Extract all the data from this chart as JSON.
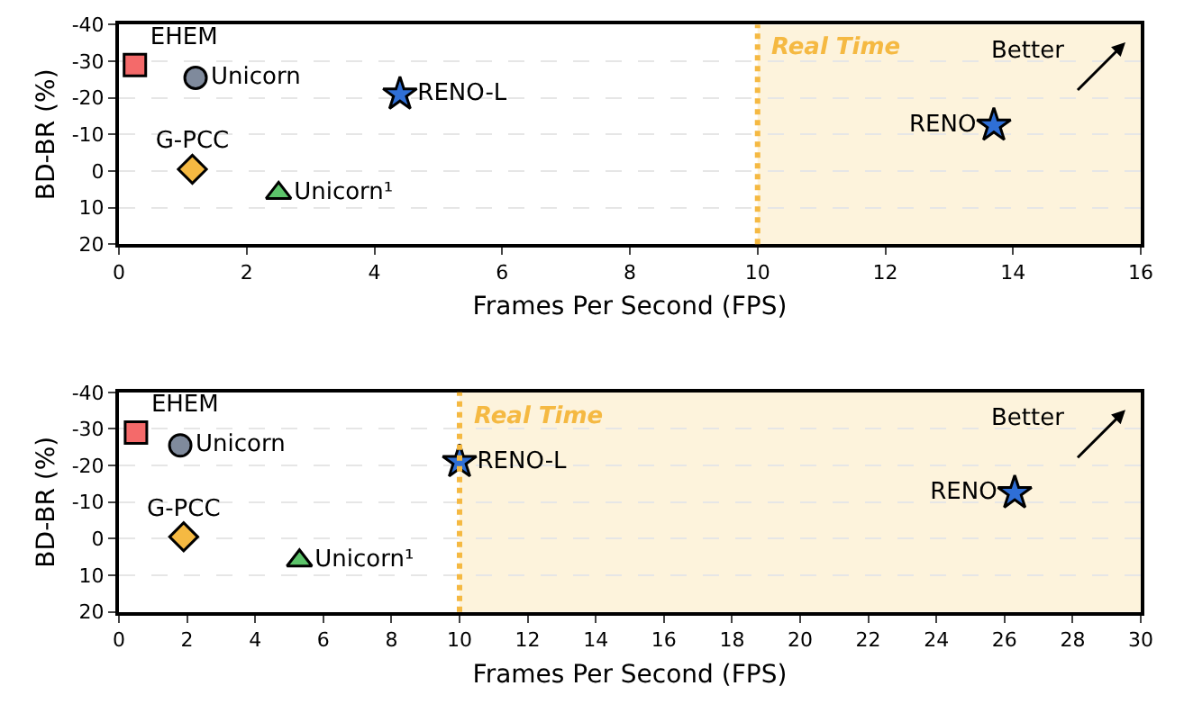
{
  "chart_data": [
    {
      "type": "scatter",
      "xlabel": "Frames Per Second (FPS)",
      "ylabel": "BD-BR (%)",
      "xlim": [
        0,
        16
      ],
      "xticks": [
        0,
        2,
        4,
        6,
        8,
        10,
        12,
        14,
        16
      ],
      "ylim": [
        20,
        -40
      ],
      "yticks": [
        20,
        10,
        0,
        -10,
        -20,
        -30,
        -40
      ],
      "grid": "y",
      "legend": false,
      "series": [
        {
          "name": "EHEM",
          "color": "#f46a6a",
          "marker": "square",
          "x": [
            0.25
          ],
          "values": [
            -29
          ]
        },
        {
          "name": "Unicorn",
          "color": "#7f8a9c",
          "marker": "circle",
          "x": [
            1.2
          ],
          "values": [
            -25.5
          ]
        },
        {
          "name": "RENO-L",
          "color": "#2f6fd6",
          "marker": "star",
          "x": [
            4.4
          ],
          "values": [
            -21
          ]
        },
        {
          "name": "G-PCC",
          "color": "#f5b942",
          "marker": "diamond",
          "x": [
            1.15
          ],
          "values": [
            -0.5
          ]
        },
        {
          "name": "Unicorn¹",
          "color": "#5cc46a",
          "marker": "triangle",
          "x": [
            2.5
          ],
          "values": [
            6
          ]
        },
        {
          "name": "RENO",
          "color": "#2f6fd6",
          "marker": "star",
          "x": [
            13.7
          ],
          "values": [
            -12.5
          ]
        }
      ],
      "bands": [
        {
          "axis": "x",
          "from": 10,
          "to": 16,
          "label": "Real Time",
          "color": "#fdf3dc"
        }
      ],
      "ref_lines": [
        {
          "axis": "x",
          "value": 10,
          "color": "#f5b942",
          "line_style": "dotted"
        }
      ],
      "annotations": [
        "Better"
      ]
    },
    {
      "type": "scatter",
      "xlabel": "Frames Per Second (FPS)",
      "ylabel": "BD-BR (%)",
      "xlim": [
        0,
        30
      ],
      "xticks": [
        0,
        2,
        4,
        6,
        8,
        10,
        12,
        14,
        16,
        18,
        20,
        22,
        24,
        26,
        28,
        30
      ],
      "ylim": [
        20,
        -40
      ],
      "yticks": [
        20,
        10,
        0,
        -10,
        -20,
        -30,
        -40
      ],
      "grid": "y",
      "legend": false,
      "series": [
        {
          "name": "EHEM",
          "color": "#f46a6a",
          "marker": "square",
          "x": [
            0.5
          ],
          "values": [
            -29
          ]
        },
        {
          "name": "Unicorn",
          "color": "#7f8a9c",
          "marker": "circle",
          "x": [
            1.8
          ],
          "values": [
            -25.5
          ]
        },
        {
          "name": "RENO-L",
          "color": "#2f6fd6",
          "marker": "star",
          "x": [
            10
          ],
          "values": [
            -21
          ]
        },
        {
          "name": "G-PCC",
          "color": "#f5b942",
          "marker": "diamond",
          "x": [
            1.9
          ],
          "values": [
            -0.5
          ]
        },
        {
          "name": "Unicorn¹",
          "color": "#5cc46a",
          "marker": "triangle",
          "x": [
            5.3
          ],
          "values": [
            6
          ]
        },
        {
          "name": "RENO",
          "color": "#2f6fd6",
          "marker": "star",
          "x": [
            26.3
          ],
          "values": [
            -12.5
          ]
        }
      ],
      "bands": [
        {
          "axis": "x",
          "from": 10,
          "to": 30,
          "label": "Real Time",
          "color": "#fdf3dc"
        }
      ],
      "ref_lines": [
        {
          "axis": "x",
          "value": 10,
          "color": "#f5b942",
          "line_style": "dotted"
        }
      ],
      "annotations": [
        "Better"
      ]
    }
  ]
}
